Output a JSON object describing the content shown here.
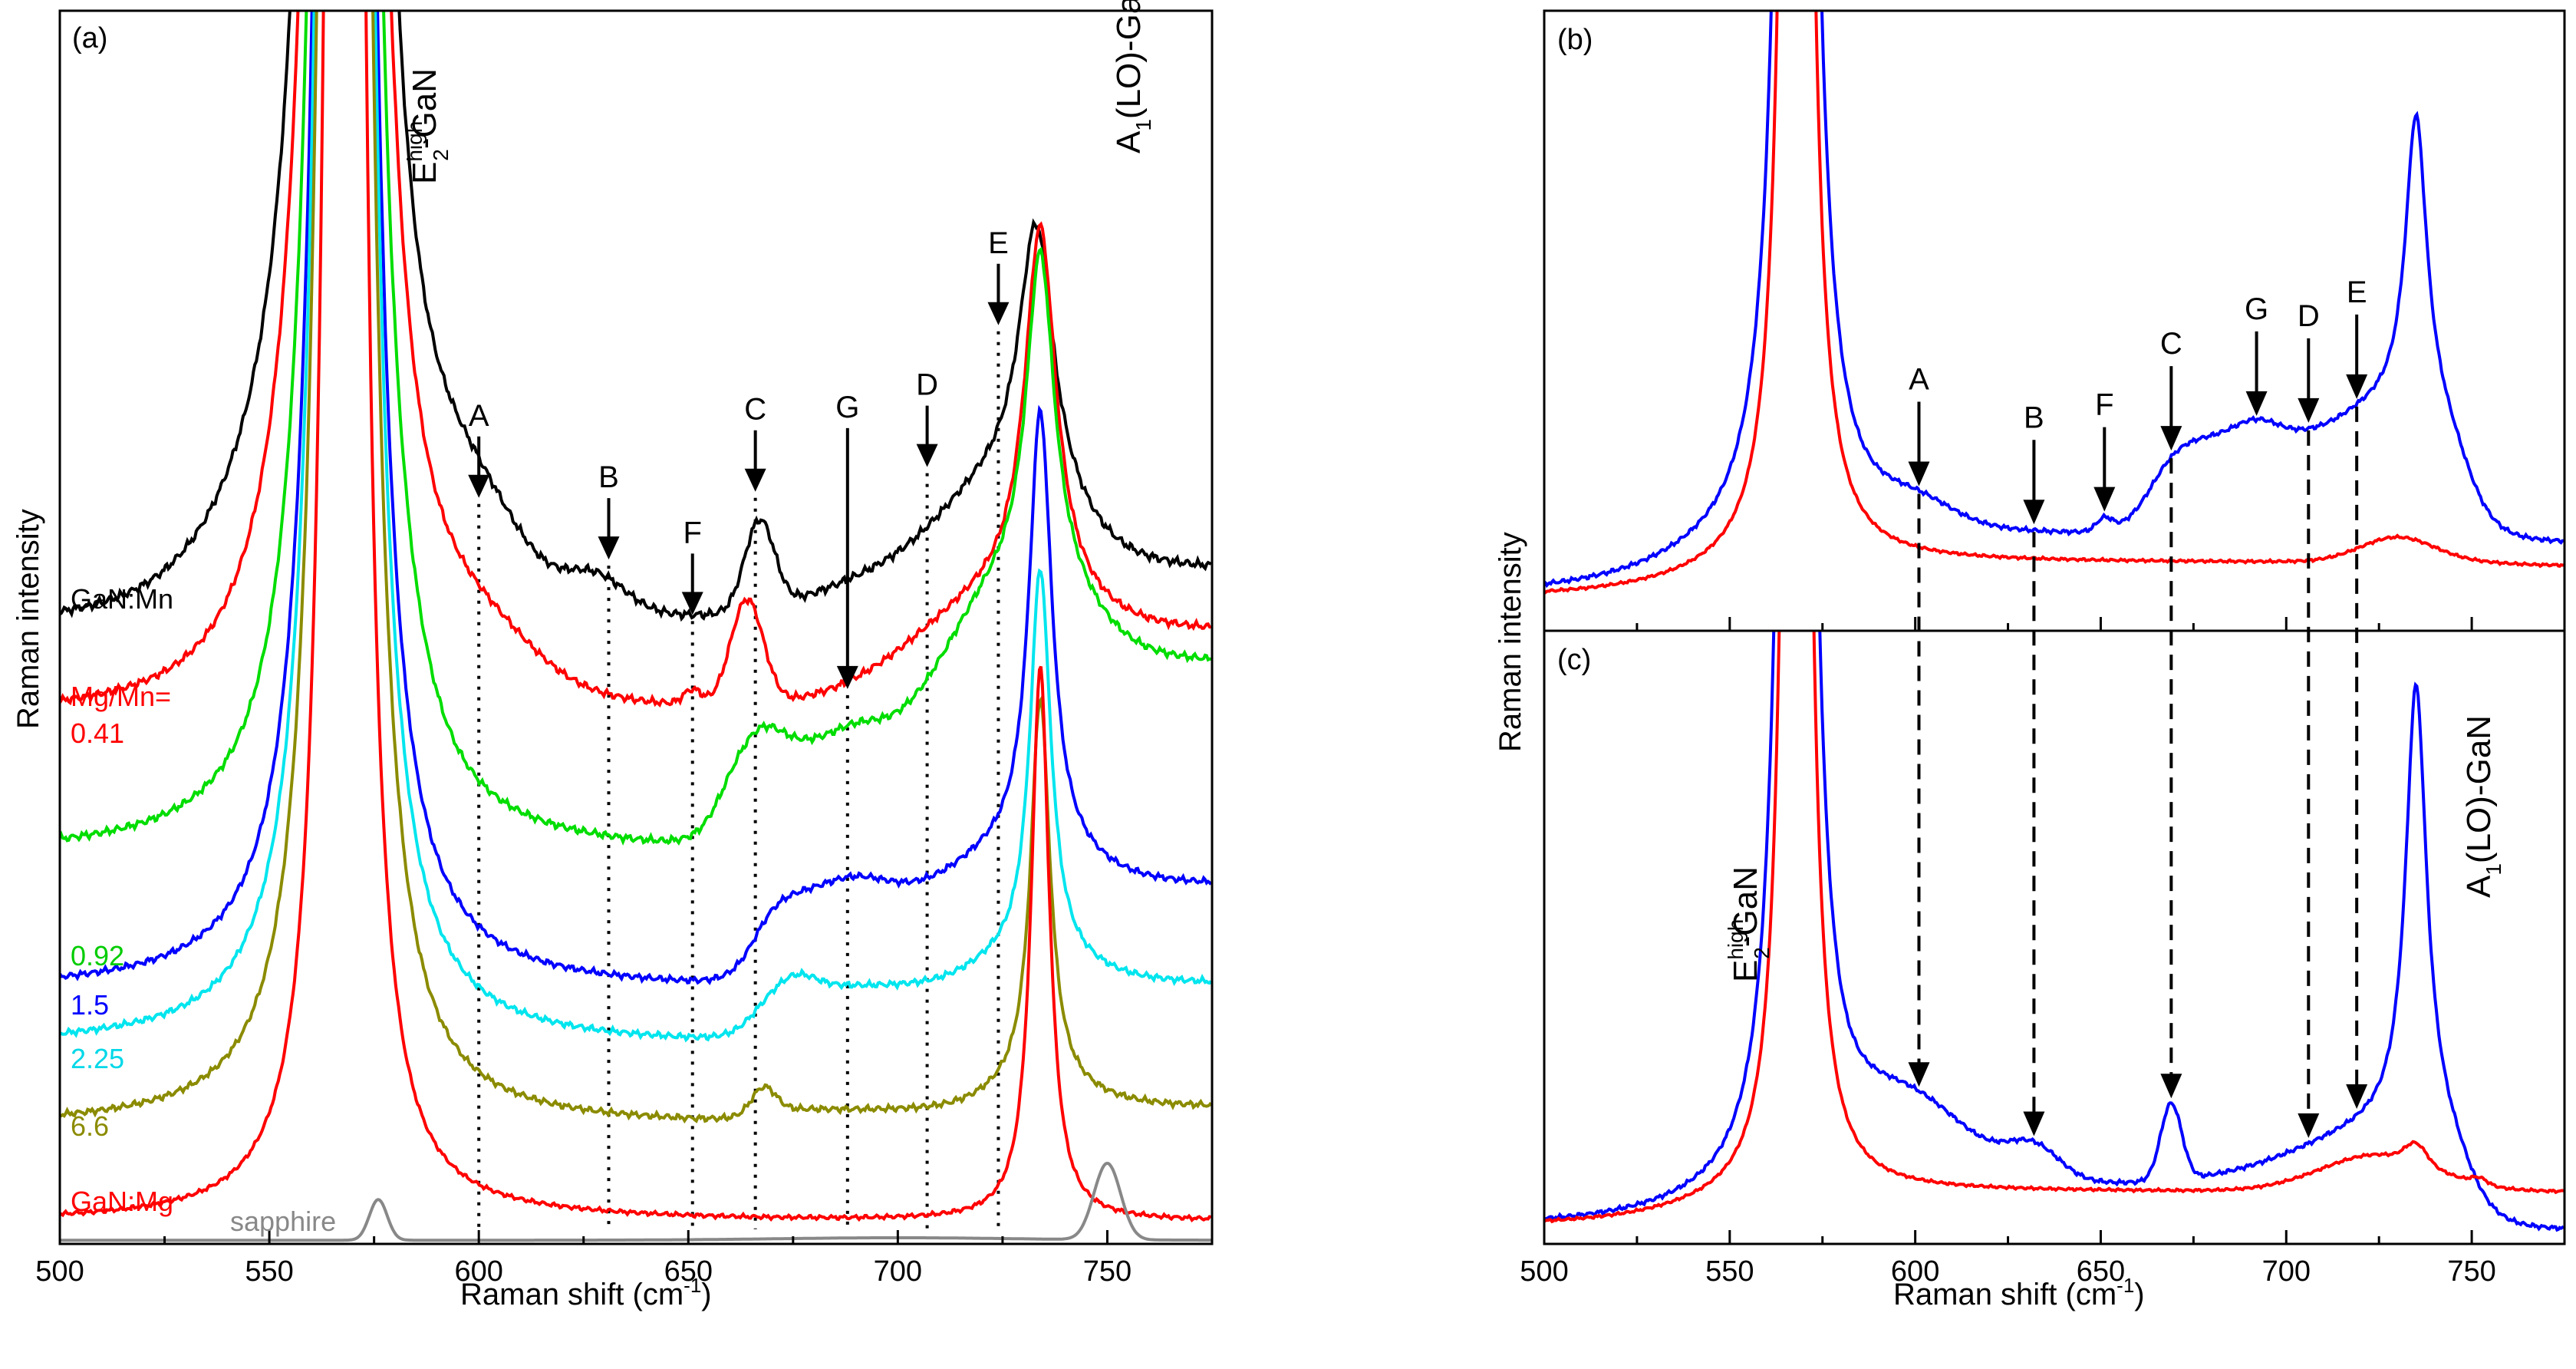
{
  "chart_data": [
    {
      "panel": "(a)",
      "type": "line",
      "xlabel_main": "Raman shift (cm",
      "xlabel_sup": "-1",
      "xlabel_close": ")",
      "ylabel": "Raman intensity",
      "xlim": [
        500,
        775
      ],
      "ylim": [
        0,
        10
      ],
      "xticks": [
        500,
        550,
        600,
        650,
        700,
        750
      ],
      "annotations": {
        "e2_main": "E",
        "e2_sup": "high",
        "e2_sub": "2",
        "e2_tail": "-GaN",
        "a1_main": "A",
        "a1_sub": "1",
        "a1_tail": "(LO)-GaN"
      },
      "peaks": [
        {
          "label": "A",
          "x": 600,
          "arrow_y": 6.05
        },
        {
          "label": "B",
          "x": 631,
          "arrow_y": 5.55
        },
        {
          "label": "F",
          "x": 651,
          "arrow_y": 5.1
        },
        {
          "label": "C",
          "x": 666,
          "arrow_y": 6.1
        },
        {
          "label": "G",
          "x": 688,
          "arrow_y": 4.5
        },
        {
          "label": "D",
          "x": 707,
          "arrow_y": 6.3
        },
        {
          "label": "E",
          "x": 724,
          "arrow_y": 7.45
        }
      ],
      "series": [
        {
          "name": "GaN:Mn",
          "color": "#000000",
          "baseline": 4.95,
          "profile": "mn"
        },
        {
          "name": "Mg/Mn=\n0.41",
          "label_line1": "Mg/Mn=",
          "label_line2": "0.41",
          "color": "#ff0000",
          "baseline": 4.25,
          "profile": "r041"
        },
        {
          "name": "0.92",
          "color": "#00dd00",
          "baseline": 3.15,
          "profile": "g092"
        },
        {
          "name": "1.5",
          "color": "#0000ff",
          "baseline": 2.05,
          "profile": "b15"
        },
        {
          "name": "2.25",
          "color": "#00e5ee",
          "baseline": 1.6,
          "profile": "c225"
        },
        {
          "name": "6.6",
          "color": "#8b8b00",
          "baseline": 0.95,
          "profile": "o66"
        },
        {
          "name": "GaN:Mg",
          "color": "#ff0000",
          "baseline": 0.18,
          "profile": "mg"
        },
        {
          "name": "sapphire",
          "color": "#888888",
          "baseline": 0.03,
          "profile": "sap"
        }
      ]
    },
    {
      "panel": "(b)",
      "type": "line",
      "xlabel_main": "Raman shift (cm",
      "xlabel_sup": "-1",
      "xlabel_close": ")",
      "ylabel": "Raman intensity",
      "xlim": [
        500,
        775
      ],
      "xticks": [
        500,
        550,
        600,
        650,
        700,
        750
      ],
      "peaks": [
        {
          "label": "A",
          "x": 601
        },
        {
          "label": "B",
          "x": 632
        },
        {
          "label": "F",
          "x": 651
        },
        {
          "label": "C",
          "x": 669
        },
        {
          "label": "G",
          "x": 692
        },
        {
          "label": "D",
          "x": 706
        },
        {
          "label": "E",
          "x": 719
        }
      ],
      "series": [
        {
          "name": "blue",
          "color": "#0000ff"
        },
        {
          "name": "red",
          "color": "#ff0000"
        }
      ]
    },
    {
      "panel": "(c)",
      "type": "line",
      "xlim": [
        500,
        775
      ],
      "xticks": [
        500,
        550,
        600,
        650,
        700,
        750
      ],
      "annotations": {
        "e2_main": "E",
        "e2_sup": "high",
        "e2_sub": "2",
        "e2_tail": "-GaN",
        "a1_main": "A",
        "a1_sub": "1",
        "a1_tail": "(LO)-GaN"
      },
      "peak_positions": [
        601,
        632,
        669,
        706,
        719
      ],
      "series": [
        {
          "name": "blue",
          "color": "#0000ff"
        },
        {
          "name": "red",
          "color": "#ff0000"
        }
      ]
    }
  ]
}
